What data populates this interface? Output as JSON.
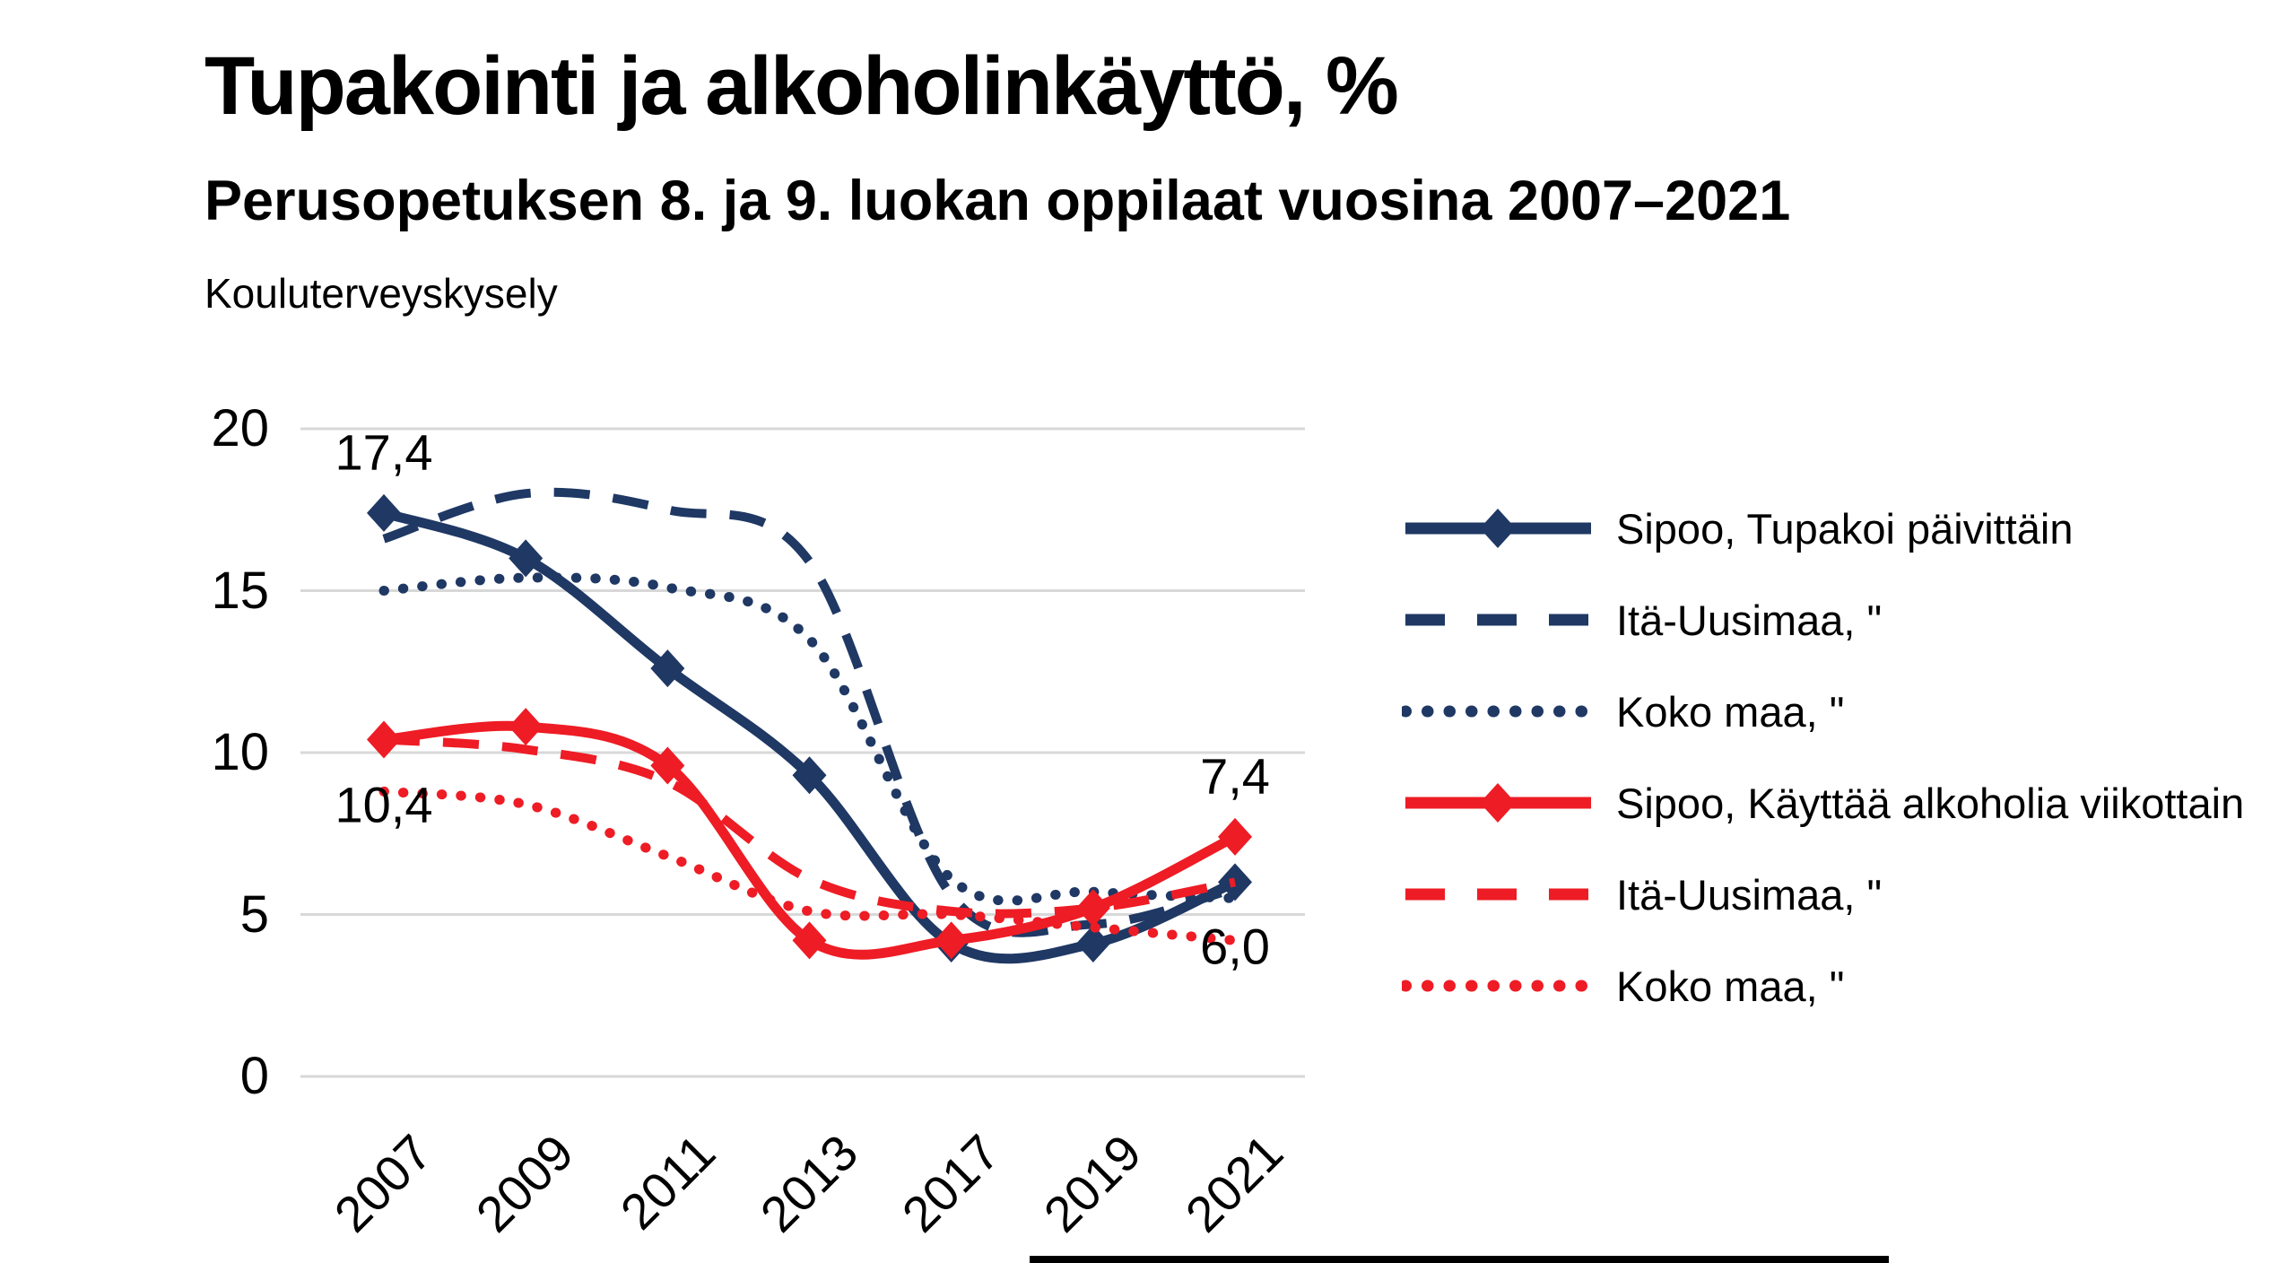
{
  "header": {
    "title": "Tupakointi ja alkoholinkäyttö, %",
    "subtitle": "Perusopetuksen 8. ja 9. luokan oppilaat vuosina 2007–2021",
    "source": "Kouluterveyskysely"
  },
  "colors": {
    "navy": "#1f3864",
    "red": "#ee1c25",
    "gridline": "#d8d8d8",
    "text": "#000000",
    "footer_bar": "#000000"
  },
  "chart_data": {
    "type": "line",
    "categories": [
      "2007",
      "2009",
      "2011",
      "2013",
      "2017",
      "2019",
      "2021"
    ],
    "y_axis": {
      "ticks": [
        20,
        15,
        10,
        5,
        0
      ],
      "range": [
        0,
        20
      ],
      "grid": true
    },
    "legend_position": "right",
    "line_style_note": "smoothed lines",
    "series": [
      {
        "name": "Sipoo, Tupakoi päivittäin",
        "color": "#1f3864",
        "style": "solid",
        "marker": "diamond",
        "values": [
          17.4,
          16.0,
          12.6,
          9.3,
          4.1,
          4.1,
          6.0
        ]
      },
      {
        "name": "Itä-Uusimaa, \"",
        "color": "#1f3864",
        "style": "dashed",
        "marker": "none",
        "values": [
          16.6,
          18.0,
          17.5,
          15.9,
          5.6,
          4.7,
          5.8
        ]
      },
      {
        "name": "Koko maa, \"",
        "color": "#1f3864",
        "style": "dotted",
        "marker": "none",
        "values": [
          15.0,
          15.4,
          15.1,
          13.5,
          6.1,
          5.7,
          5.5
        ]
      },
      {
        "name": "Sipoo, Käyttää alkoholia viikottain",
        "color": "#ee1c25",
        "style": "solid",
        "marker": "diamond",
        "values": [
          10.4,
          10.8,
          9.6,
          4.2,
          4.2,
          5.2,
          7.4
        ]
      },
      {
        "name": "Itä-Uusimaa, \"",
        "color": "#ee1c25",
        "style": "dashed",
        "marker": "none",
        "values": [
          10.4,
          10.1,
          9.1,
          6.1,
          5.1,
          5.2,
          6.0
        ]
      },
      {
        "name": "Koko maa, \"",
        "color": "#ee1c25",
        "style": "dotted",
        "marker": "none",
        "values": [
          8.8,
          8.4,
          6.8,
          5.1,
          5.0,
          4.6,
          4.2
        ]
      }
    ],
    "data_labels": [
      {
        "text": "17,4",
        "series_index": 0,
        "point_index": 0,
        "placement": "above"
      },
      {
        "text": "10,4",
        "series_index": 3,
        "point_index": 0,
        "placement": "below"
      },
      {
        "text": "7,4",
        "series_index": 3,
        "point_index": 6,
        "placement": "above"
      },
      {
        "text": "6,0",
        "series_index": 0,
        "point_index": 6,
        "placement": "below"
      }
    ]
  }
}
